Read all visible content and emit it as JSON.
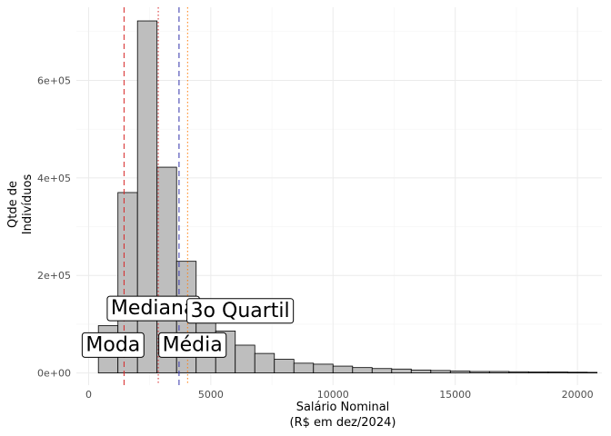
{
  "chart_data": {
    "type": "bar",
    "title": "",
    "xlabel": [
      "Salário Nominal",
      "(R$ em dez/2024)"
    ],
    "ylabel": [
      "Qtde de",
      "Indivíduos"
    ],
    "xlim": [
      -500,
      21000
    ],
    "ylim": [
      -25000,
      750000
    ],
    "xticks": [
      0,
      5000,
      10000,
      15000,
      20000
    ],
    "xtick_labels": [
      "0",
      "5000",
      "10000",
      "15000",
      "20000"
    ],
    "yticks": [
      0,
      200000,
      400000,
      600000
    ],
    "ytick_labels": [
      "0e+00",
      "2e+05",
      "4e+05",
      "6e+05"
    ],
    "grid": true,
    "bin_width": 800,
    "bins": [
      {
        "x0": 400,
        "x1": 1200,
        "count": 97000
      },
      {
        "x0": 1200,
        "x1": 2000,
        "count": 370000
      },
      {
        "x0": 2000,
        "x1": 2800,
        "count": 722000
      },
      {
        "x0": 2800,
        "x1": 3600,
        "count": 422000
      },
      {
        "x0": 3600,
        "x1": 4400,
        "count": 229000
      },
      {
        "x0": 4400,
        "x1": 5200,
        "count": 120000
      },
      {
        "x0": 5200,
        "x1": 6000,
        "count": 86000
      },
      {
        "x0": 6000,
        "x1": 6800,
        "count": 57000
      },
      {
        "x0": 6800,
        "x1": 7600,
        "count": 40000
      },
      {
        "x0": 7600,
        "x1": 8400,
        "count": 28000
      },
      {
        "x0": 8400,
        "x1": 9200,
        "count": 20000
      },
      {
        "x0": 9200,
        "x1": 10000,
        "count": 18000
      },
      {
        "x0": 10000,
        "x1": 10800,
        "count": 14000
      },
      {
        "x0": 10800,
        "x1": 11600,
        "count": 11000
      },
      {
        "x0": 11600,
        "x1": 12400,
        "count": 9000
      },
      {
        "x0": 12400,
        "x1": 13200,
        "count": 8000
      },
      {
        "x0": 13200,
        "x1": 14000,
        "count": 6000
      },
      {
        "x0": 14000,
        "x1": 14800,
        "count": 5000
      },
      {
        "x0": 14800,
        "x1": 15600,
        "count": 4000
      },
      {
        "x0": 15600,
        "x1": 16400,
        "count": 3000
      },
      {
        "x0": 16400,
        "x1": 17200,
        "count": 3000
      },
      {
        "x0": 17200,
        "x1": 18000,
        "count": 2500
      },
      {
        "x0": 18000,
        "x1": 18800,
        "count": 2000
      },
      {
        "x0": 18800,
        "x1": 19600,
        "count": 2000
      },
      {
        "x0": 19600,
        "x1": 20400,
        "count": 1500
      },
      {
        "x0": 20400,
        "x1": 20800,
        "count": 1200
      }
    ],
    "reference_lines": [
      {
        "name": "Moda",
        "x": 1450,
        "color": "#d62728",
        "style": "dashed"
      },
      {
        "name": "Mediana",
        "x": 2850,
        "color": "#d62728",
        "style": "dotted"
      },
      {
        "name": "Média",
        "x": 3700,
        "color": "#3333aa",
        "style": "dashed"
      },
      {
        "name": "3o Quartil",
        "x": 4050,
        "color": "#ff7f0e",
        "style": "dotted"
      }
    ],
    "annotations": [
      {
        "label": "Moda",
        "x": 1000,
        "y": 60000
      },
      {
        "label": "Mediana",
        "x": 2650,
        "y": 135000
      },
      {
        "label": "Média",
        "x": 4250,
        "y": 60000
      },
      {
        "label": "3o Quartil",
        "x": 6200,
        "y": 130000
      }
    ]
  }
}
